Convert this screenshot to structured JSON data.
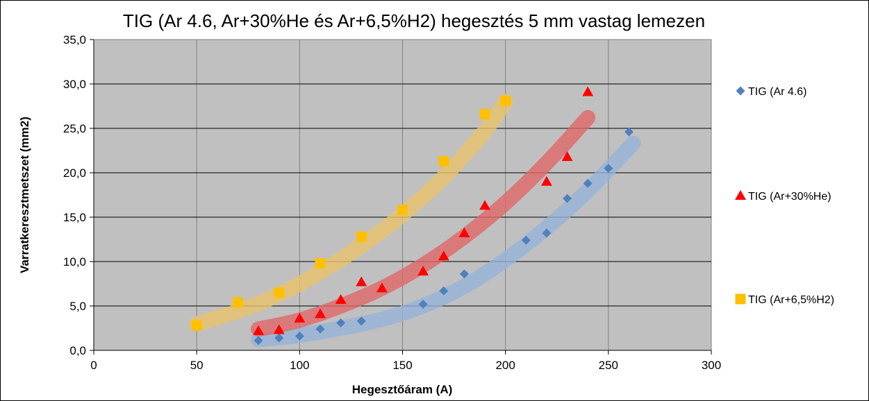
{
  "chart_data": {
    "type": "scatter",
    "title": "TIG (Ar 4.6, Ar+30%He és Ar+6,5%H2) hegesztés 5 mm vastag lemezen",
    "xlabel": "Hegesztőáram (A)",
    "ylabel": "Varratkeresztmetszet (mm2)",
    "xlim": [
      0,
      300
    ],
    "ylim": [
      0,
      35
    ],
    "xticks": [
      0,
      50,
      100,
      150,
      200,
      250,
      300
    ],
    "yticks": [
      0,
      5,
      10,
      15,
      20,
      25,
      30,
      35
    ],
    "xtick_labels": [
      "0",
      "50",
      "100",
      "150",
      "200",
      "250",
      "300"
    ],
    "ytick_labels": [
      "0,0",
      "5,0",
      "10,0",
      "15,0",
      "20,0",
      "25,0",
      "30,0",
      "35,0"
    ],
    "grid": true,
    "legend_position": "right",
    "series": [
      {
        "name": "TIG (Ar 4.6)",
        "marker": "diamond",
        "color": "#4F81BD",
        "trend_color": "#95B3D7",
        "x": [
          80,
          90,
          100,
          110,
          120,
          130,
          160,
          170,
          180,
          210,
          220,
          230,
          240,
          250,
          260
        ],
        "y": [
          1.1,
          1.4,
          1.6,
          2.4,
          3.1,
          3.3,
          5.2,
          6.7,
          8.6,
          12.4,
          13.2,
          17.1,
          18.8,
          20.5,
          24.6
        ],
        "trend_x": [
          80,
          100,
          120,
          140,
          160,
          180,
          200,
          220,
          240,
          262
        ],
        "trend_y": [
          1.2,
          1.7,
          2.5,
          3.5,
          5.0,
          7.2,
          10.2,
          13.8,
          18.0,
          23.3
        ]
      },
      {
        "name": "TIG (Ar+30%He)",
        "marker": "triangle",
        "color": "#FF0000",
        "trend_color": "#E06666",
        "x": [
          80,
          90,
          100,
          110,
          120,
          130,
          140,
          160,
          170,
          180,
          190,
          220,
          230,
          240
        ],
        "y": [
          2.2,
          2.3,
          3.6,
          4.1,
          5.7,
          7.7,
          7.0,
          8.9,
          10.6,
          13.2,
          16.3,
          19.0,
          21.8,
          29.1
        ],
        "trend_x": [
          80,
          100,
          120,
          140,
          160,
          180,
          200,
          220,
          240
        ],
        "trend_y": [
          2.4,
          3.4,
          5.0,
          7.0,
          9.6,
          12.8,
          16.6,
          21.1,
          26.2
        ]
      },
      {
        "name": "TIG (Ar+6,5%H2)",
        "marker": "square",
        "color": "#FFC000",
        "trend_color": "#E8C26A",
        "x": [
          50,
          70,
          90,
          110,
          130,
          150,
          170,
          190,
          200
        ],
        "y": [
          2.8,
          5.4,
          6.5,
          9.8,
          12.8,
          15.8,
          21.3,
          26.6,
          28.1
        ],
        "trend_x": [
          50,
          70,
          90,
          110,
          130,
          150,
          170,
          190,
          200
        ],
        "trend_y": [
          3.0,
          4.4,
          6.3,
          8.8,
          11.8,
          15.3,
          19.5,
          24.7,
          28.0
        ]
      }
    ]
  }
}
